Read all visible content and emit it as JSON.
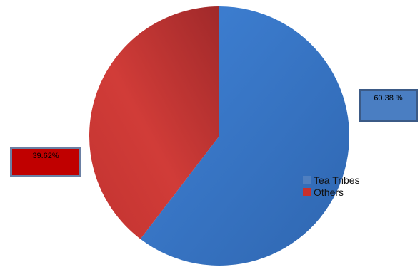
{
  "chart_data": {
    "type": "pie",
    "series": [
      {
        "name": "Tea Tribes",
        "value": 60.38,
        "label": "60.38 %",
        "color": "#3a78c9",
        "label_box_color": "#4a7ec2"
      },
      {
        "name": "Others",
        "value": 39.62,
        "label": "39.62%",
        "color": "#c8302c",
        "label_box_color": "#c00000"
      }
    ],
    "legend": {
      "placement": "right",
      "entries": [
        "Tea Tribes",
        "Others"
      ],
      "colors": [
        "#4f7fc0",
        "#c8302c"
      ]
    },
    "start_angle": "12 o'clock",
    "direction": "clockwise"
  }
}
